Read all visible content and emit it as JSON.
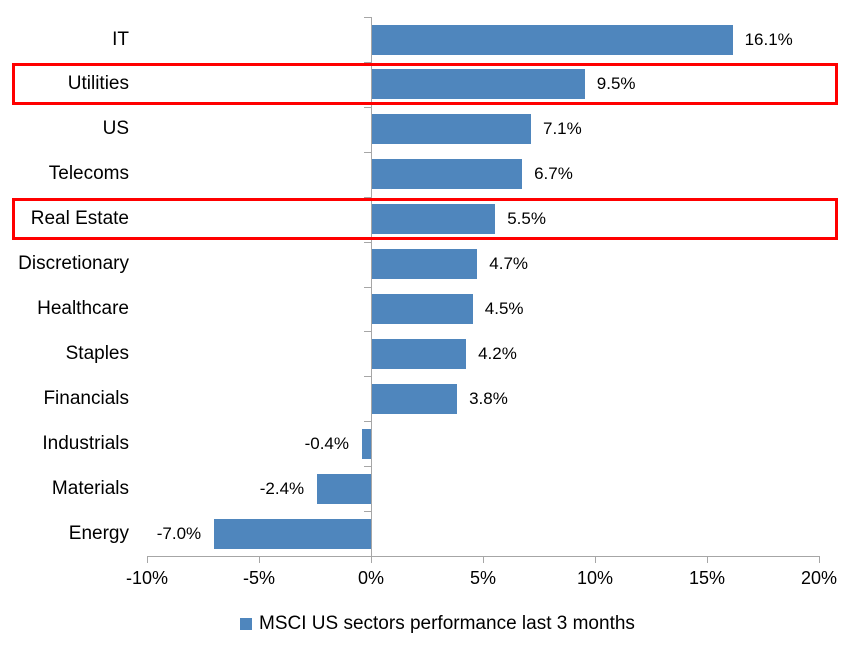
{
  "chart_data": {
    "type": "bar",
    "orientation": "horizontal",
    "title": "",
    "categories": [
      "IT",
      "Utilities",
      "US",
      "Telecoms",
      "Real Estate",
      "Discretionary",
      "Healthcare",
      "Staples",
      "Financials",
      "Industrials",
      "Materials",
      "Energy"
    ],
    "values": [
      16.1,
      9.5,
      7.1,
      6.7,
      5.5,
      4.7,
      4.5,
      4.2,
      3.8,
      -0.4,
      -2.4,
      -7.0
    ],
    "value_labels": [
      "16.1%",
      "9.5%",
      "7.1%",
      "6.7%",
      "5.5%",
      "4.7%",
      "4.5%",
      "4.2%",
      "3.8%",
      "-0.4%",
      "-2.4%",
      "-7.0%"
    ],
    "xlim": [
      -10,
      20
    ],
    "x_ticks": [
      -10,
      -5,
      0,
      5,
      10,
      15,
      20
    ],
    "x_tick_labels": [
      "-10%",
      "-5%",
      "0%",
      "5%",
      "10%",
      "15%",
      "20%"
    ],
    "grid": false,
    "legend": [
      "MSCI US sectors performance last 3 months"
    ],
    "legend_position": "bottom",
    "highlighted_categories": [
      "Utilities",
      "Real Estate"
    ]
  },
  "colors": {
    "bar": "#4F86BD",
    "axis": "#A6A6A6",
    "highlight_box": "#FF0000",
    "text": "#000000",
    "background": "#FFFFFF"
  }
}
